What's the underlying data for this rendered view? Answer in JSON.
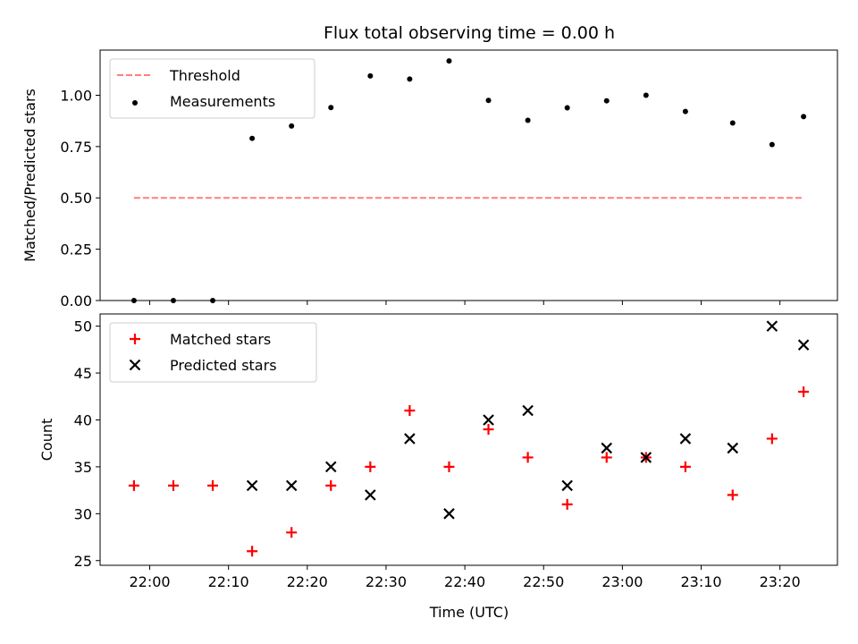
{
  "chart_data": {
    "title": "Flux total observing time = 0.00 h",
    "xlabel": "Time (UTC)",
    "x_tick_labels": [
      "22:00",
      "22:10",
      "22:20",
      "22:30",
      "22:40",
      "22:50",
      "23:00",
      "23:10",
      "23:20"
    ],
    "colors": {
      "threshold": "#ff7f7f",
      "measurements": "#000000",
      "matched": "#ff0000",
      "predicted": "#000000"
    },
    "panels": [
      {
        "type": "scatter",
        "ylabel": "Matched/Predicted stars",
        "ylim": [
          0,
          1.22
        ],
        "y_ticks": [
          "0.00",
          "0.25",
          "0.50",
          "0.75",
          "1.00"
        ],
        "legend_position": "upper-left",
        "series": [
          {
            "name": "Threshold",
            "style": "dashed-line",
            "x": [
              "21:58",
              "23:23"
            ],
            "y": [
              0.5,
              0.5
            ]
          },
          {
            "name": "Measurements",
            "style": "dot",
            "x": [
              "21:58",
              "22:03",
              "22:08",
              "22:13",
              "22:18",
              "22:23",
              "22:28",
              "22:33",
              "22:38",
              "22:43",
              "22:48",
              "22:53",
              "22:58",
              "23:03",
              "23:08",
              "23:14",
              "23:19",
              "23:23"
            ],
            "y": [
              0.0,
              0.0,
              0.0,
              0.79,
              0.85,
              0.94,
              1.094,
              1.079,
              1.167,
              0.975,
              0.878,
              0.939,
              0.973,
              1.0,
              0.921,
              0.865,
              0.76,
              0.896
            ]
          }
        ]
      },
      {
        "type": "scatter",
        "ylabel": "Count",
        "ylim": [
          24.5,
          51.3
        ],
        "y_ticks": [
          "25",
          "30",
          "35",
          "40",
          "45",
          "50"
        ],
        "legend_position": "upper-left",
        "series": [
          {
            "name": "Matched stars",
            "style": "plus",
            "x": [
              "21:58",
              "22:03",
              "22:08",
              "22:13",
              "22:18",
              "22:23",
              "22:28",
              "22:33",
              "22:38",
              "22:43",
              "22:48",
              "22:53",
              "22:58",
              "23:03",
              "23:08",
              "23:14",
              "23:19",
              "23:23"
            ],
            "y": [
              33,
              33,
              33,
              26,
              28,
              33,
              35,
              41,
              35,
              39,
              36,
              31,
              36,
              36,
              35,
              32,
              38,
              43
            ]
          },
          {
            "name": "Predicted stars",
            "style": "x",
            "x": [
              "22:13",
              "22:18",
              "22:23",
              "22:28",
              "22:33",
              "22:38",
              "22:43",
              "22:48",
              "22:53",
              "22:58",
              "23:03",
              "23:08",
              "23:14",
              "23:19",
              "23:23"
            ],
            "y": [
              33,
              33,
              35,
              32,
              38,
              30,
              40,
              41,
              33,
              37,
              36,
              38,
              37,
              50,
              48
            ]
          }
        ]
      }
    ]
  }
}
